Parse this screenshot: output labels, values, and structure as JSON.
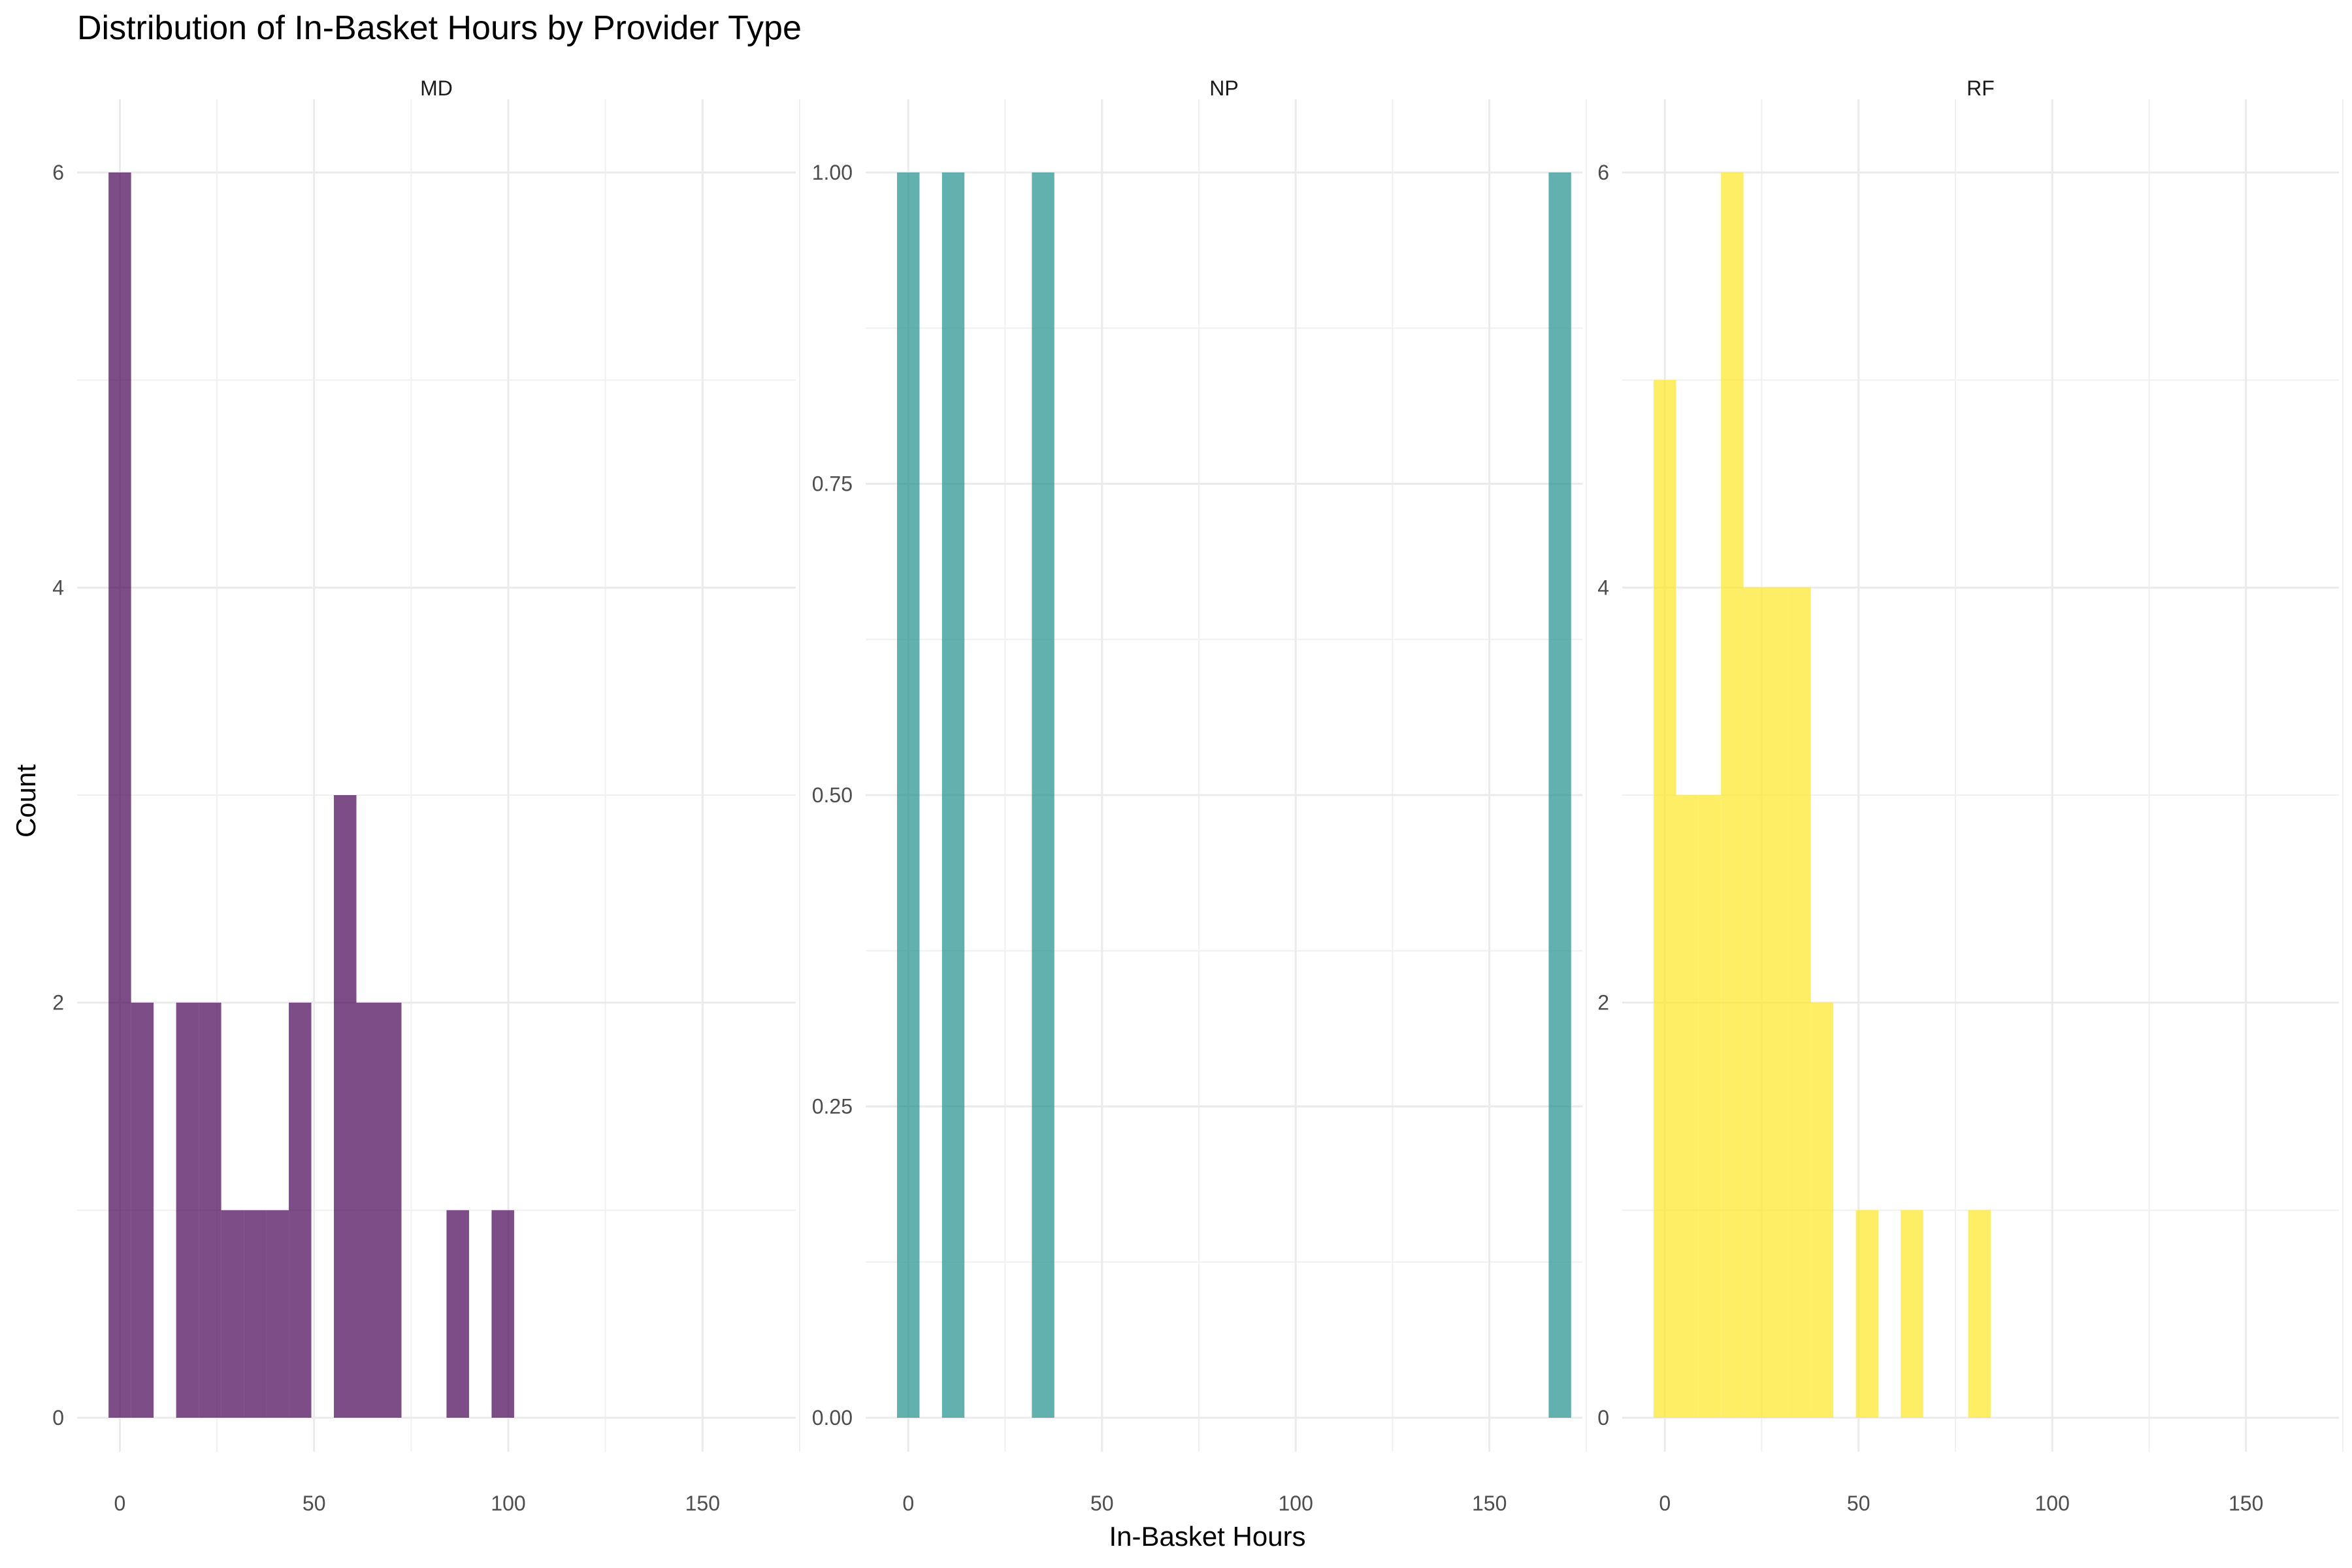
{
  "chart_data": {
    "type": "bar",
    "title": "Distribution of In-Basket Hours by Provider Type",
    "xlabel": "In-Basket Hours",
    "ylabel": "Count",
    "grid": true,
    "x_ticks": [
      0,
      50,
      100,
      150
    ],
    "xlim": [
      -11,
      174
    ],
    "bin_width": 5.8,
    "panels": [
      {
        "name": "MD",
        "color": "#440154",
        "ylim": [
          0,
          6
        ],
        "y_ticks": [
          0,
          2,
          4,
          6
        ],
        "y_tick_labels": [
          "0",
          "2",
          "4",
          "6"
        ],
        "bins": [
          {
            "x": 0.0,
            "count": 6
          },
          {
            "x": 5.8,
            "count": 2
          },
          {
            "x": 17.4,
            "count": 2
          },
          {
            "x": 23.2,
            "count": 2
          },
          {
            "x": 29.0,
            "count": 1
          },
          {
            "x": 34.8,
            "count": 1
          },
          {
            "x": 40.6,
            "count": 1
          },
          {
            "x": 46.4,
            "count": 2
          },
          {
            "x": 58.0,
            "count": 3
          },
          {
            "x": 63.8,
            "count": 2
          },
          {
            "x": 69.6,
            "count": 2
          },
          {
            "x": 87.0,
            "count": 1
          },
          {
            "x": 98.6,
            "count": 1
          }
        ]
      },
      {
        "name": "NP",
        "color": "#21908C",
        "ylim": [
          0,
          1
        ],
        "y_ticks": [
          0,
          0.25,
          0.5,
          0.75,
          1
        ],
        "y_tick_labels": [
          "0.00",
          "0.25",
          "0.50",
          "0.75",
          "1.00"
        ],
        "bins": [
          {
            "x": 0.0,
            "count": 1
          },
          {
            "x": 11.6,
            "count": 1
          },
          {
            "x": 34.8,
            "count": 1
          },
          {
            "x": 168.2,
            "count": 1
          }
        ]
      },
      {
        "name": "RF",
        "color": "#FDE725",
        "ylim": [
          0,
          6
        ],
        "y_ticks": [
          0,
          2,
          4,
          6
        ],
        "y_tick_labels": [
          "0",
          "2",
          "4",
          "6"
        ],
        "bins": [
          {
            "x": 0.0,
            "count": 5
          },
          {
            "x": 5.8,
            "count": 3
          },
          {
            "x": 11.6,
            "count": 3
          },
          {
            "x": 17.4,
            "count": 6
          },
          {
            "x": 23.2,
            "count": 4
          },
          {
            "x": 29.0,
            "count": 4
          },
          {
            "x": 34.8,
            "count": 4
          },
          {
            "x": 40.6,
            "count": 2
          },
          {
            "x": 52.2,
            "count": 1
          },
          {
            "x": 63.8,
            "count": 1
          },
          {
            "x": 81.2,
            "count": 1
          }
        ]
      }
    ]
  }
}
